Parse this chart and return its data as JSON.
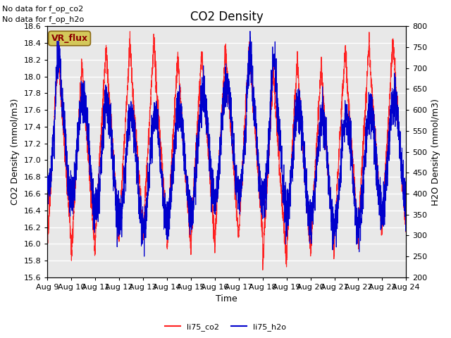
{
  "title": "CO2 Density",
  "xlabel": "Time",
  "ylabel_left": "CO2 Density (mmol/m3)",
  "ylabel_right": "H2O Density (mmol/m3)",
  "ylim_left": [
    15.6,
    18.6
  ],
  "ylim_right": [
    200,
    800
  ],
  "xlim": [
    0,
    15
  ],
  "xtick_labels": [
    "Aug 9",
    "Aug 10",
    "Aug 11",
    "Aug 12",
    "Aug 13",
    "Aug 14",
    "Aug 15",
    "Aug 16",
    "Aug 17",
    "Aug 18",
    "Aug 19",
    "Aug 20",
    "Aug 21",
    "Aug 22",
    "Aug 23",
    "Aug 24"
  ],
  "yticks_left": [
    15.6,
    15.8,
    16.0,
    16.2,
    16.4,
    16.6,
    16.8,
    17.0,
    17.2,
    17.4,
    17.6,
    17.8,
    18.0,
    18.2,
    18.4,
    18.6
  ],
  "yticks_right": [
    200,
    250,
    300,
    350,
    400,
    450,
    500,
    550,
    600,
    650,
    700,
    750,
    800
  ],
  "line_co2_color": "#FF2020",
  "line_h2o_color": "#0000CC",
  "plot_bg": "#E8E8E8",
  "grid_color": "#FFFFFF",
  "no_data_text1": "No data for f_op_co2",
  "no_data_text2": "No data for f_op_h2o",
  "vr_flux_label": "VR_flux",
  "legend_co2": "li75_co2",
  "legend_h2o": "li75_h2o",
  "title_fontsize": 12,
  "label_fontsize": 9,
  "tick_fontsize": 8,
  "nodata_fontsize": 8,
  "vr_fontsize": 9
}
